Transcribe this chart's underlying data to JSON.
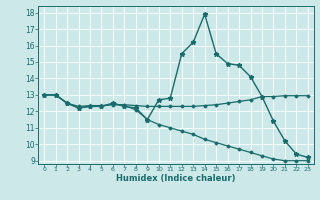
{
  "title": "",
  "xlabel": "Humidex (Indice chaleur)",
  "background_color": "#cce8e8",
  "line_color": "#1a6b6b",
  "grid_color": "#ffffff",
  "xlim": [
    -0.5,
    23.5
  ],
  "ylim": [
    8.8,
    18.4
  ],
  "xticks": [
    0,
    1,
    2,
    3,
    4,
    5,
    6,
    7,
    8,
    9,
    10,
    11,
    12,
    13,
    14,
    15,
    16,
    17,
    18,
    19,
    20,
    21,
    22,
    23
  ],
  "yticks": [
    9,
    10,
    11,
    12,
    13,
    14,
    15,
    16,
    17,
    18
  ],
  "series": [
    {
      "x": [
        0,
        1,
        2,
        3,
        4,
        5,
        6,
        7,
        8,
        9,
        10,
        11,
        12,
        13,
        14,
        15,
        16,
        17,
        18,
        19,
        20,
        21,
        22,
        23
      ],
      "y": [
        13,
        13,
        12.5,
        12.2,
        12.3,
        12.3,
        12.5,
        12.3,
        12.2,
        11.5,
        12.7,
        12.8,
        15.5,
        16.2,
        17.9,
        15.5,
        14.9,
        14.8,
        14.1,
        12.9,
        11.4,
        10.2,
        9.4,
        9.2
      ],
      "marker": "*",
      "markersize": 3.5,
      "linewidth": 1.0
    },
    {
      "x": [
        0,
        1,
        2,
        3,
        4,
        5,
        6,
        7,
        8,
        9,
        10,
        11,
        12,
        13,
        14,
        15,
        16,
        17,
        18,
        19,
        20,
        21,
        22,
        23
      ],
      "y": [
        13,
        13,
        12.5,
        12.3,
        12.35,
        12.35,
        12.4,
        12.4,
        12.35,
        12.3,
        12.3,
        12.3,
        12.3,
        12.3,
        12.35,
        12.4,
        12.5,
        12.6,
        12.7,
        12.9,
        12.9,
        12.95,
        12.95,
        12.95
      ],
      "marker": "D",
      "markersize": 1.5,
      "linewidth": 0.9
    },
    {
      "x": [
        0,
        1,
        2,
        3,
        4,
        5,
        6,
        7,
        8,
        9,
        10,
        11,
        12,
        13,
        14,
        15,
        16,
        17,
        18,
        19,
        20,
        21,
        22,
        23
      ],
      "y": [
        13,
        13,
        12.5,
        12.2,
        12.3,
        12.3,
        12.45,
        12.35,
        12.1,
        11.5,
        11.2,
        11.0,
        10.8,
        10.6,
        10.3,
        10.1,
        9.9,
        9.7,
        9.5,
        9.3,
        9.1,
        9.0,
        9.0,
        9.0
      ],
      "marker": "D",
      "markersize": 1.5,
      "linewidth": 0.9
    }
  ]
}
